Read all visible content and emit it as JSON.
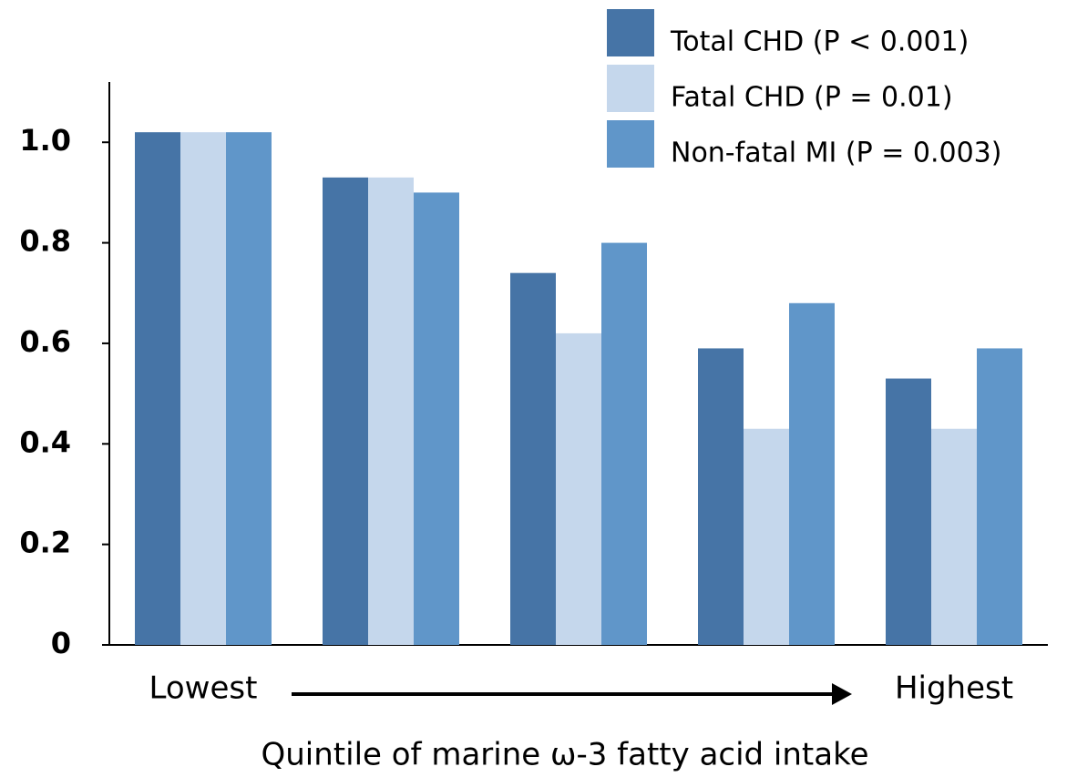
{
  "chart_data": {
    "type": "bar",
    "x_label": "Quintile of marine ω-3 fatty acid intake",
    "categories": [
      "Lowest",
      null,
      null,
      null,
      "Highest"
    ],
    "series": [
      {
        "name": "Total CHD (P < 0.001)",
        "color": "#4674a6",
        "values": [
          1.02,
          0.93,
          0.74,
          0.59,
          0.53
        ]
      },
      {
        "name": "Fatal CHD (P = 0.01)",
        "color": "#c5d7ec",
        "values": [
          1.02,
          0.93,
          0.62,
          0.43,
          0.43
        ]
      },
      {
        "name": "Non-fatal MI (P = 0.003)",
        "color": "#6096c9",
        "values": [
          1.02,
          0.9,
          0.8,
          0.68,
          0.59
        ]
      }
    ],
    "ylim": [
      0,
      1.12
    ],
    "yticks": [
      0,
      0.2,
      0.4,
      0.6,
      0.8,
      {
        "value": 1,
        "label": "1.0"
      }
    ],
    "legend": "top-right"
  }
}
